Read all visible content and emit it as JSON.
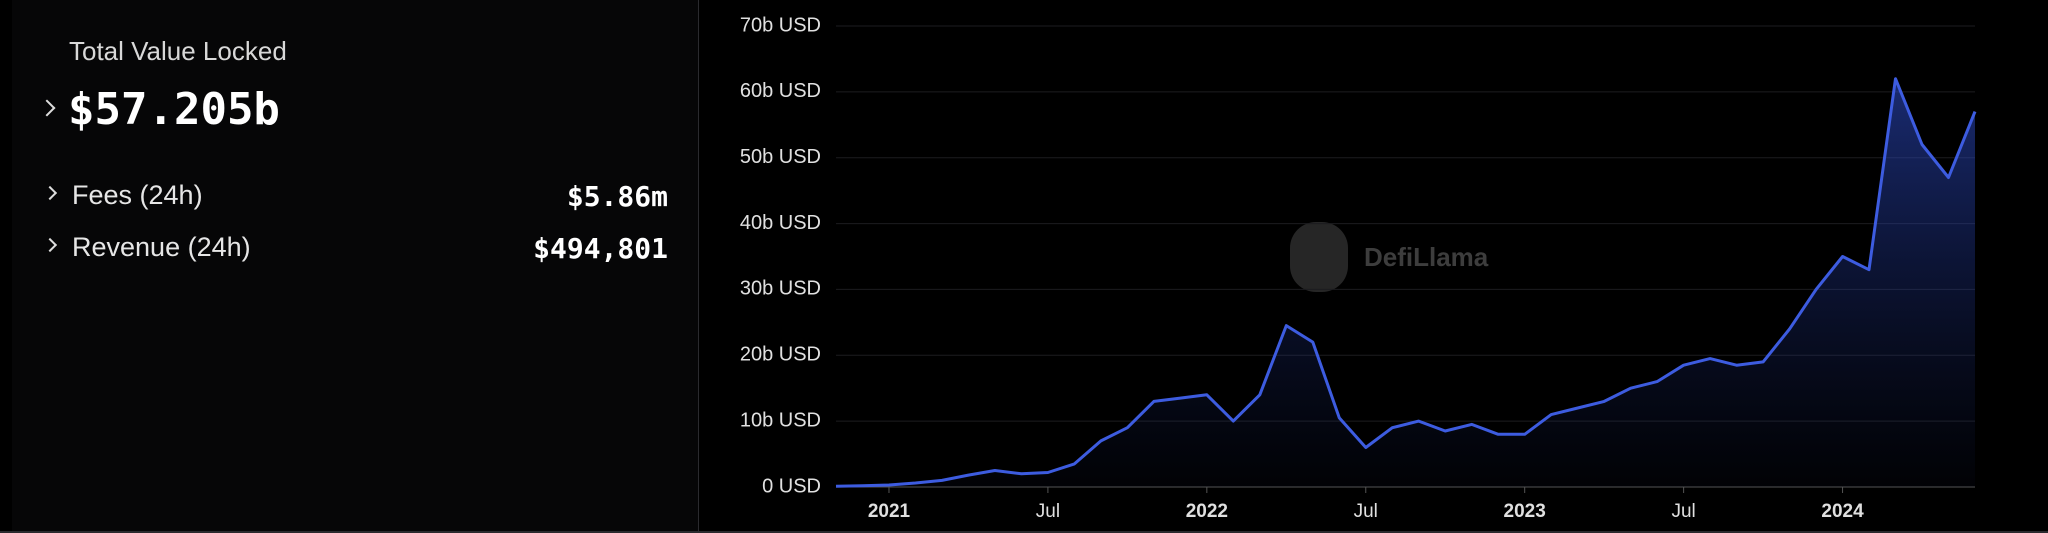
{
  "stats": {
    "tvl_label": "Total Value Locked",
    "tvl_value": "$57.205b",
    "rows": [
      {
        "label": "Fees (24h)",
        "value": "$5.86m"
      },
      {
        "label": "Revenue (24h)",
        "value": "$494,801"
      }
    ]
  },
  "chart_data": {
    "type": "area",
    "watermark": "DefiLlama",
    "x": [
      "2020-11",
      "2020-12",
      "2021-01",
      "2021-02",
      "2021-03",
      "2021-04",
      "2021-05",
      "2021-06",
      "2021-07",
      "2021-08",
      "2021-09",
      "2021-10",
      "2021-11",
      "2021-12",
      "2022-01",
      "2022-02",
      "2022-03",
      "2022-04",
      "2022-05",
      "2022-06",
      "2022-07",
      "2022-08",
      "2022-09",
      "2022-10",
      "2022-11",
      "2022-12",
      "2023-01",
      "2023-02",
      "2023-03",
      "2023-04",
      "2023-05",
      "2023-06",
      "2023-07",
      "2023-08",
      "2023-09",
      "2023-10",
      "2023-11",
      "2023-12",
      "2024-01",
      "2024-02",
      "2024-03",
      "2024-04",
      "2024-05",
      "2024-06"
    ],
    "series": [
      {
        "name": "TVL",
        "color": "#3d5ce0",
        "values": [
          0.1,
          0.2,
          0.3,
          0.6,
          1.0,
          1.8,
          2.5,
          2.0,
          2.2,
          3.5,
          7,
          9,
          13,
          13.5,
          14,
          10,
          14,
          24.5,
          22,
          10.5,
          6,
          9,
          10,
          8.5,
          9.5,
          8,
          8,
          11,
          12,
          13,
          15,
          16,
          18.5,
          19.5,
          18.5,
          19,
          24,
          30,
          35,
          33,
          62,
          52,
          47,
          57
        ]
      }
    ],
    "xlim": [
      "2020-11",
      "2024-06"
    ],
    "xticks": [
      {
        "value": "2021-01",
        "label": "2021"
      },
      {
        "value": "2021-07",
        "label": "Jul"
      },
      {
        "value": "2022-01",
        "label": "2022"
      },
      {
        "value": "2022-07",
        "label": "Jul"
      },
      {
        "value": "2023-01",
        "label": "2023"
      },
      {
        "value": "2023-07",
        "label": "Jul"
      },
      {
        "value": "2024-01",
        "label": "2024"
      }
    ],
    "ylim": [
      0,
      70
    ],
    "yticks": [
      {
        "value": 0,
        "label": "0 USD"
      },
      {
        "value": 10,
        "label": "10b USD"
      },
      {
        "value": 20,
        "label": "20b USD"
      },
      {
        "value": 30,
        "label": "30b USD"
      },
      {
        "value": 40,
        "label": "40b USD"
      },
      {
        "value": 50,
        "label": "50b USD"
      },
      {
        "value": 60,
        "label": "60b USD"
      },
      {
        "value": 70,
        "label": "70b USD"
      }
    ],
    "grid": true
  }
}
